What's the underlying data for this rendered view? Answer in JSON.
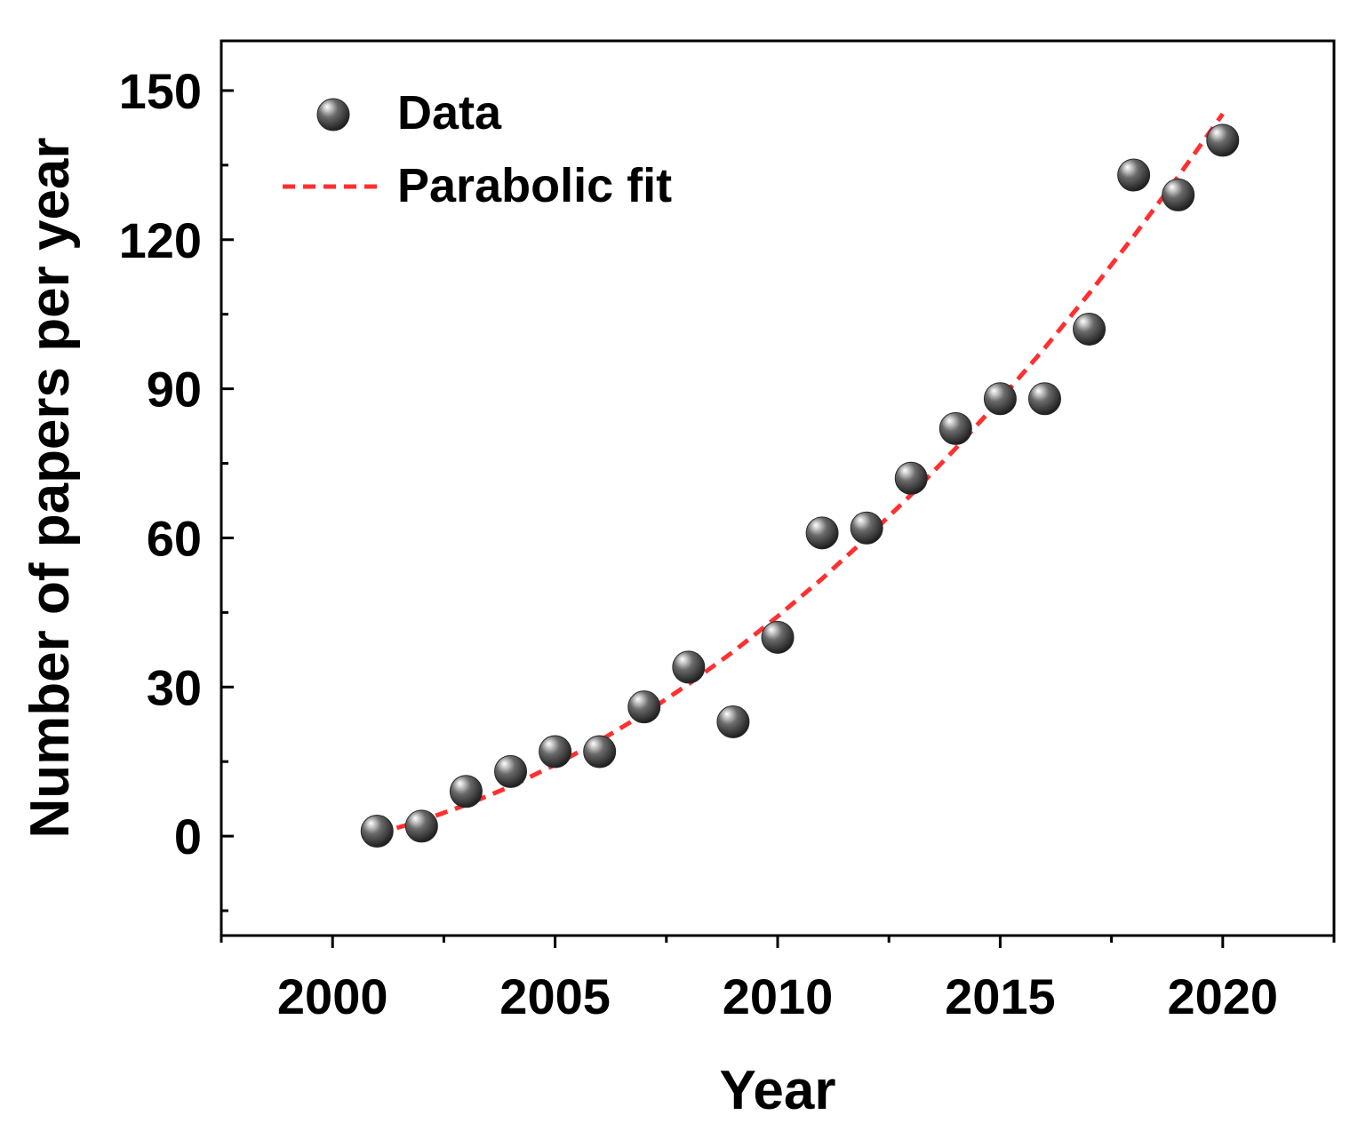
{
  "chart_data": {
    "type": "scatter",
    "title": "",
    "xlabel": "Year",
    "ylabel": "Number of papers per year",
    "xlim": [
      1997.5,
      2022.5
    ],
    "ylim": [
      -20,
      160
    ],
    "xticks": [
      2000,
      2005,
      2010,
      2015,
      2020
    ],
    "yticks": [
      0,
      30,
      60,
      90,
      120,
      150
    ],
    "legend_position": "top-left",
    "grid": false,
    "series": [
      {
        "name": "Data",
        "kind": "scatter",
        "x": [
          2001,
          2002,
          2003,
          2004,
          2005,
          2006,
          2007,
          2008,
          2009,
          2010,
          2011,
          2012,
          2013,
          2014,
          2015,
          2016,
          2017,
          2018,
          2019,
          2020
        ],
        "y": [
          1,
          2,
          9,
          13,
          17,
          17,
          26,
          34,
          23,
          40,
          61,
          62,
          72,
          82,
          88,
          88,
          102,
          133,
          129,
          140
        ]
      },
      {
        "name": "Parabolic fit",
        "kind": "fit-line",
        "x": [
          2001,
          2002,
          2003,
          2004,
          2005,
          2006,
          2007,
          2008,
          2009,
          2010,
          2011,
          2012,
          2013,
          2014,
          2015,
          2016,
          2017,
          2018,
          2019,
          2020
        ],
        "y": [
          0.5,
          3.1,
          6.3,
          10.0,
          14.4,
          19.2,
          24.6,
          30.6,
          37.1,
          44.2,
          51.8,
          60.0,
          68.7,
          78.0,
          87.8,
          98.2,
          109.2,
          120.7,
          132.7,
          145.3
        ]
      }
    ],
    "colors": {
      "marker": "#4a4a4a",
      "fit_line": "#ff3030",
      "axis": "#000000"
    }
  }
}
